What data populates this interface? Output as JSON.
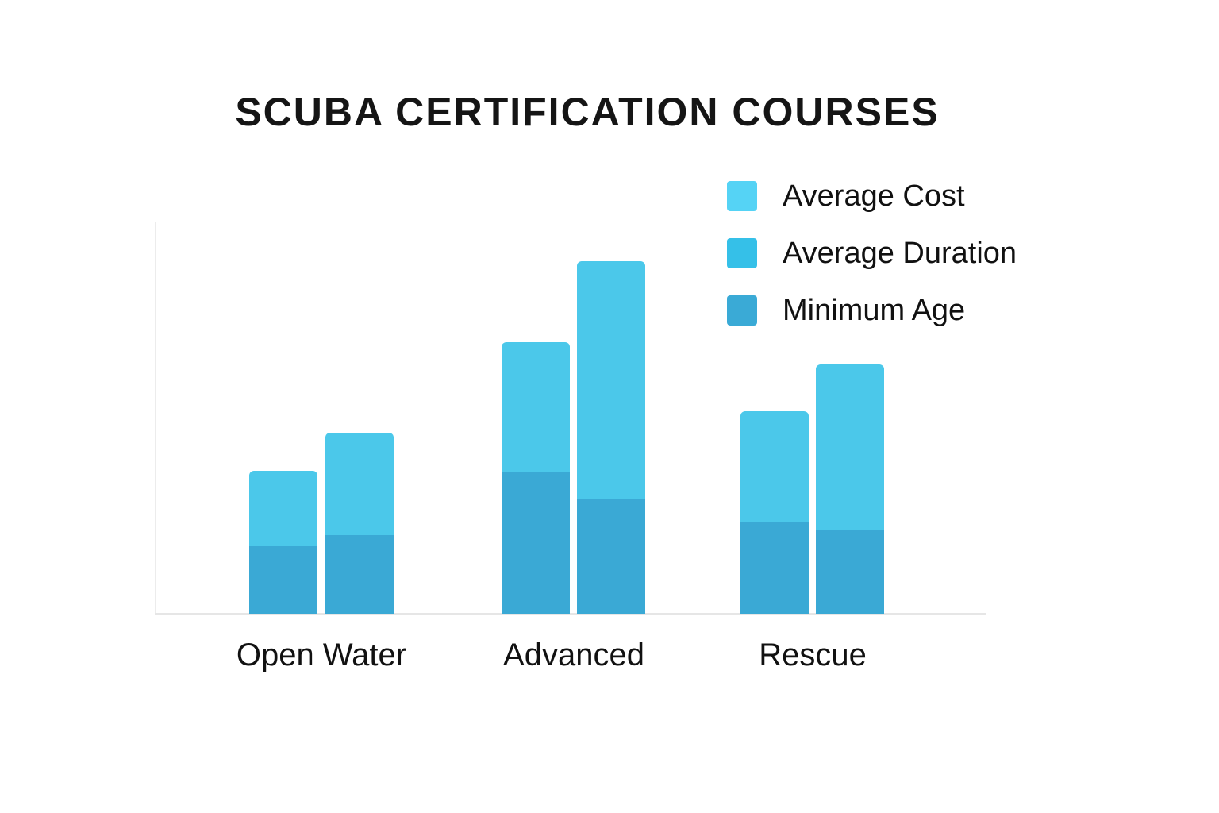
{
  "title": "SCUBA CERTIFICATION COURSES",
  "legend": [
    {
      "label": "Average Cost",
      "color": "#55d3f5"
    },
    {
      "label": "Average Duration",
      "color": "#35c0e8"
    },
    {
      "label": "Minimum Age",
      "color": "#3aaad6"
    }
  ],
  "categories": [
    "Open Water",
    "Advanced",
    "Rescue"
  ],
  "colors": {
    "upper_segment": "#4bc8ea",
    "lower_segment": "#3aa9d5",
    "axis": "#e6e6e6",
    "title": "#151515"
  },
  "chart_data": {
    "type": "bar",
    "subtype": "grouped-stacked",
    "title": "SCUBA CERTIFICATION COURSES",
    "xlabel": "",
    "ylabel": "",
    "categories": [
      "Open Water",
      "Advanced",
      "Rescue"
    ],
    "legend": [
      "Average Cost",
      "Average Duration",
      "Minimum Age"
    ],
    "legend_position": "top-right",
    "grid": false,
    "y_tick_labels": false,
    "units": "relative (no axis scale shown; values in pixels of bar height)",
    "bars": [
      {
        "category": "Open Water",
        "bar": 1,
        "lower": 85,
        "upper": 95,
        "total": 180
      },
      {
        "category": "Open Water",
        "bar": 2,
        "lower": 99,
        "upper": 129,
        "total": 228
      },
      {
        "category": "Advanced",
        "bar": 1,
        "lower": 178,
        "upper": 164,
        "total": 342
      },
      {
        "category": "Advanced",
        "bar": 2,
        "lower": 144,
        "upper": 300,
        "total": 444
      },
      {
        "category": "Rescue",
        "bar": 1,
        "lower": 116,
        "upper": 139,
        "total": 255
      },
      {
        "category": "Rescue",
        "bar": 2,
        "lower": 105,
        "upper": 209,
        "total": 314
      }
    ],
    "series": [
      {
        "name": "Bar 1 lower (darker)",
        "values": [
          85,
          178,
          116
        ]
      },
      {
        "name": "Bar 1 upper (lighter)",
        "values": [
          95,
          164,
          139
        ]
      },
      {
        "name": "Bar 2 lower (darker)",
        "values": [
          99,
          144,
          105
        ]
      },
      {
        "name": "Bar 2 upper (lighter)",
        "values": [
          129,
          300,
          209
        ]
      }
    ],
    "ylim": [
      0,
      494
    ]
  }
}
